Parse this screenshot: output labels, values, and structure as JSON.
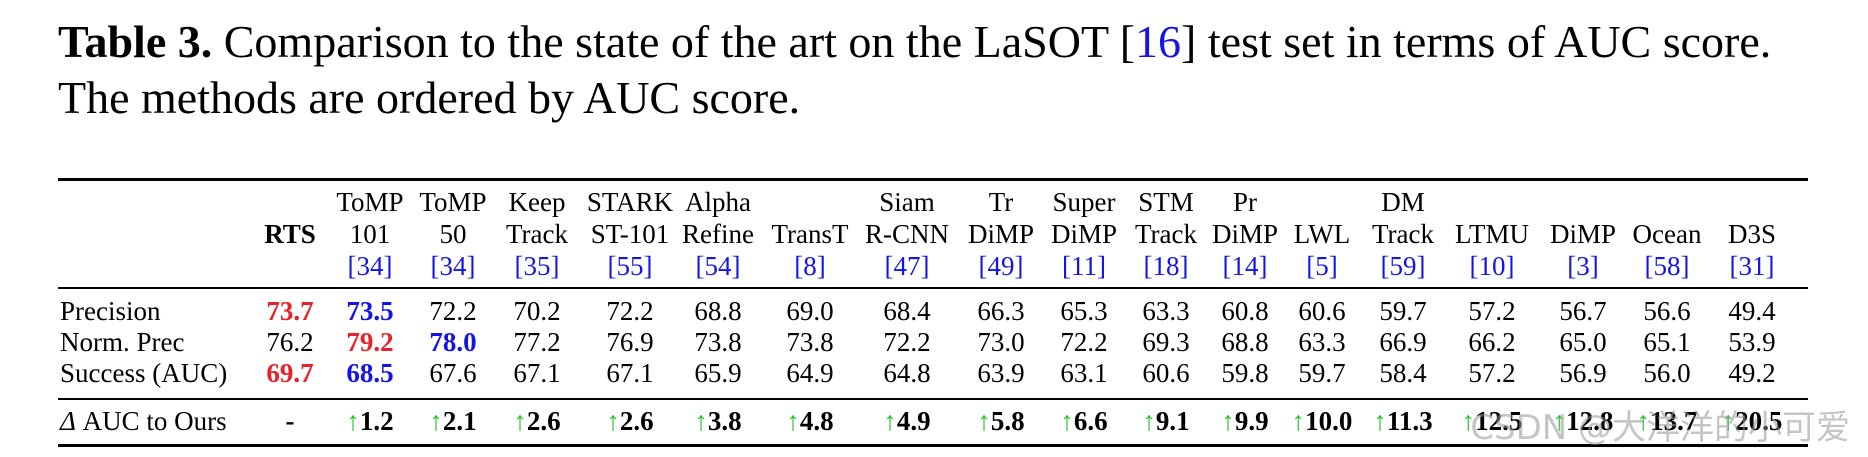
{
  "caption": {
    "label": "Table 3.",
    "text_before_ref": " Comparison to the state of the art on the LaSOT [",
    "ref": "16",
    "text_after_ref": "] test set in terms of AUC score. The methods are ordered by AUC score."
  },
  "columns": [
    {
      "lines": [
        "",
        "RTS"
      ],
      "ref": ""
    },
    {
      "lines": [
        "ToMP",
        "101"
      ],
      "ref": "[34]"
    },
    {
      "lines": [
        "ToMP",
        "50"
      ],
      "ref": "[34]"
    },
    {
      "lines": [
        "Keep",
        "Track"
      ],
      "ref": "[35]"
    },
    {
      "lines": [
        "STARK",
        "ST-101"
      ],
      "ref": "[55]"
    },
    {
      "lines": [
        "Alpha",
        "Refine"
      ],
      "ref": "[54]"
    },
    {
      "lines": [
        "",
        "TransT"
      ],
      "ref": "[8]"
    },
    {
      "lines": [
        "Siam",
        "R-CNN"
      ],
      "ref": "[47]"
    },
    {
      "lines": [
        "Tr",
        "DiMP"
      ],
      "ref": "[49]"
    },
    {
      "lines": [
        "Super",
        "DiMP"
      ],
      "ref": "[11]"
    },
    {
      "lines": [
        "STM",
        "Track"
      ],
      "ref": "[18]"
    },
    {
      "lines": [
        "Pr",
        "DiMP"
      ],
      "ref": "[14]"
    },
    {
      "lines": [
        "",
        "LWL"
      ],
      "ref": "[5]"
    },
    {
      "lines": [
        "DM",
        "Track"
      ],
      "ref": "[59]"
    },
    {
      "lines": [
        "",
        "LTMU"
      ],
      "ref": "[10]"
    },
    {
      "lines": [
        "",
        "DiMP"
      ],
      "ref": "[3]"
    },
    {
      "lines": [
        "",
        "Ocean"
      ],
      "ref": "[58]"
    },
    {
      "lines": [
        "",
        "D3S"
      ],
      "ref": "[31]"
    }
  ],
  "rows": [
    {
      "label": "Precision",
      "values": [
        "73.7",
        "73.5",
        "72.2",
        "70.2",
        "72.2",
        "68.8",
        "69.0",
        "68.4",
        "66.3",
        "65.3",
        "63.3",
        "60.8",
        "60.6",
        "59.7",
        "57.2",
        "56.7",
        "56.6",
        "49.4"
      ],
      "styles": [
        "red",
        "blue",
        "",
        "",
        "",
        "",
        "",
        "",
        "",
        "",
        "",
        "",
        "",
        "",
        "",
        "",
        "",
        ""
      ]
    },
    {
      "label": "Norm. Prec",
      "values": [
        "76.2",
        "79.2",
        "78.0",
        "77.2",
        "76.9",
        "73.8",
        "73.8",
        "72.2",
        "73.0",
        "72.2",
        "69.3",
        "68.8",
        "63.3",
        "66.9",
        "66.2",
        "65.0",
        "65.1",
        "53.9"
      ],
      "styles": [
        "",
        "red",
        "blue",
        "",
        "",
        "",
        "",
        "",
        "",
        "",
        "",
        "",
        "",
        "",
        "",
        "",
        "",
        ""
      ]
    },
    {
      "label": "Success (AUC)",
      "values": [
        "69.7",
        "68.5",
        "67.6",
        "67.1",
        "67.1",
        "65.9",
        "64.9",
        "64.8",
        "63.9",
        "63.1",
        "60.6",
        "59.8",
        "59.7",
        "58.4",
        "57.2",
        "56.9",
        "56.0",
        "49.2"
      ],
      "styles": [
        "red",
        "blue",
        "",
        "",
        "",
        "",
        "",
        "",
        "",
        "",
        "",
        "",
        "",
        "",
        "",
        "",
        "",
        ""
      ]
    }
  ],
  "delta_row": {
    "label_symbol": "Δ",
    "label_text": " AUC to Ours",
    "arrow": "↑",
    "values": [
      "-",
      "1.2",
      "2.1",
      "2.6",
      "2.6",
      "3.8",
      "4.8",
      "4.9",
      "5.8",
      "6.6",
      "9.1",
      "9.9",
      "10.0",
      "11.3",
      "12.5",
      "12.8",
      "13.7",
      "20.5"
    ]
  },
  "watermark": "CSDN @大洋洋的小可爱",
  "colors": {
    "best": "#e8222a",
    "second": "#1414e6",
    "arrow": "#22c322"
  }
}
